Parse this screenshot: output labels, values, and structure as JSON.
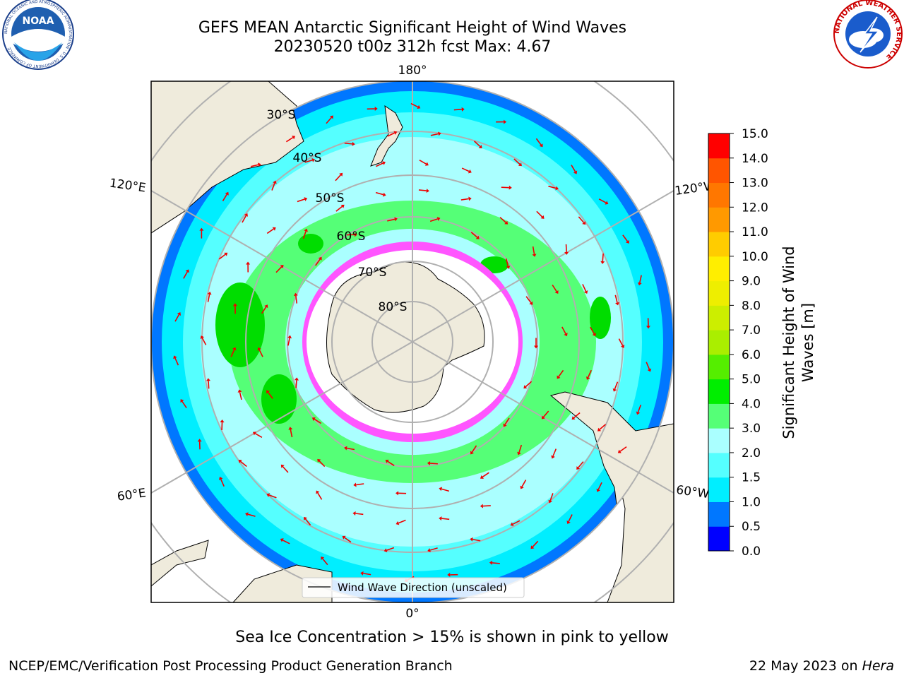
{
  "header": {
    "title_line1": "GEFS MEAN Antarctic Significant Height of Wind Waves",
    "title_line2": "20230520 t00z 312h fcst   Max: 4.67"
  },
  "logos": {
    "noaa_text": "NOAA",
    "noaa_ring": "NATIONAL OCEANIC AND ATMOSPHERIC ADMINISTRATION · U.S. DEPARTMENT OF COMMERCE",
    "nws_ring": "NATIONAL WEATHER SERVICE"
  },
  "map": {
    "longitude_labels": [
      "180°",
      "120°E",
      "120°W",
      "60°E",
      "60°W",
      "0°"
    ],
    "latitude_labels": [
      "30°S",
      "40°S",
      "50°S",
      "60°S",
      "70°S",
      "80°S"
    ],
    "legend_label": "Wind Wave Direction (unscaled)",
    "ocean_colors": {
      "wave_0.5_1.0": "#0077ff",
      "wave_1.0_1.5": "#00eeff",
      "wave_1.5_2.0": "#55ffff",
      "wave_2.0_3.0": "#aaffff",
      "wave_3.0_4.0": "#55ff77",
      "wave_4.0_5.0": "#00dd00",
      "land": "#efebdc",
      "sea_ice": "#ff55ff",
      "arrow": "#ee0000"
    }
  },
  "colorbar": {
    "ticks": [
      "0.0",
      "0.5",
      "1.0",
      "1.5",
      "2.0",
      "3.0",
      "4.0",
      "5.0",
      "6.0",
      "7.0",
      "8.0",
      "9.0",
      "10.0",
      "11.0",
      "12.0",
      "13.0",
      "14.0",
      "15.0"
    ],
    "colors": [
      "#0000ff",
      "#0077ff",
      "#00eeff",
      "#55ffff",
      "#aaffff",
      "#55ff77",
      "#00ee00",
      "#55ee00",
      "#aaee00",
      "#ccee00",
      "#eeee00",
      "#ffee00",
      "#ffcc00",
      "#ff9900",
      "#ff7700",
      "#ff5500",
      "#ff0000"
    ],
    "label_line1": "Significant Height of Wind",
    "label_line2": "Waves [m]"
  },
  "footer": {
    "note": "Sea Ice Concentration > 15% is shown in pink to yellow",
    "left": "NCEP/EMC/Verification Post Processing Product Generation Branch",
    "right_date": "22 May 2023 on ",
    "right_host": "Hera"
  }
}
